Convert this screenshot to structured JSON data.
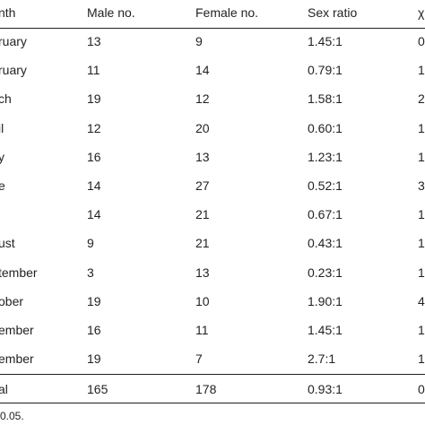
{
  "table": {
    "header": [
      "nth",
      "Male no.",
      "Female no.",
      "Sex ratio",
      "χ"
    ],
    "rows": [
      [
        "ruary",
        "13",
        "9",
        "1.45:1",
        "0"
      ],
      [
        "ruary",
        "11",
        "14",
        "0.79:1",
        "1"
      ],
      [
        "ch",
        "19",
        "12",
        "1.58:1",
        "2"
      ],
      [
        "il",
        "12",
        "20",
        "0.60:1",
        "1"
      ],
      [
        "y",
        "16",
        "13",
        "1.23:1",
        "1"
      ],
      [
        "e",
        "14",
        "27",
        "0.52:1",
        "3"
      ],
      [
        null,
        "14",
        "21",
        "0.67:1",
        "1"
      ],
      [
        "ust",
        "9",
        "21",
        "0.43:1",
        "1"
      ],
      [
        "tember",
        "3",
        "13",
        "0.23:1",
        "1"
      ],
      [
        "ober",
        "19",
        "10",
        "1.90:1",
        "4"
      ],
      [
        "ember",
        "16",
        "11",
        "1.45:1",
        "1"
      ],
      [
        "ember",
        "19",
        "7",
        "2.7:1",
        "1"
      ],
      [
        "al",
        "165",
        "178",
        "0.93:1",
        "0"
      ]
    ],
    "footnote": "0.05."
  }
}
